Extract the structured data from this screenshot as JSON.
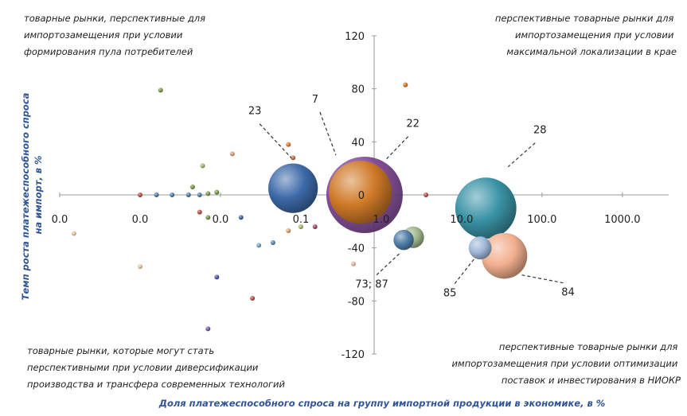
{
  "chart_data": {
    "type": "bubble",
    "x_scale": "log10",
    "xlabel": "Доля платежеспособного спроса на группу импортной продукции в экономике, в %",
    "ylabel": "Темп роста платежеспособного спроса на импорт, в %",
    "xlim": [
      0.0001,
      3000
    ],
    "ylim": [
      -120,
      120
    ],
    "x_ticks": [
      {
        "value": 0.0001,
        "label": "0.0"
      },
      {
        "value": 0.001,
        "label": "0.0"
      },
      {
        "value": 0.01,
        "label": "0.0"
      },
      {
        "value": 0.1,
        "label": "0.1"
      },
      {
        "value": 1,
        "label": "1.0"
      },
      {
        "value": 10,
        "label": "10.0"
      },
      {
        "value": 100,
        "label": "100.0"
      },
      {
        "value": 1000,
        "label": "1000.0"
      }
    ],
    "y_ticks": [
      {
        "value": 120,
        "label": "120"
      },
      {
        "value": 80,
        "label": "80"
      },
      {
        "value": 40,
        "label": "40"
      },
      {
        "value": 0,
        "label": "0"
      },
      {
        "value": -40,
        "label": "-40"
      },
      {
        "value": -80,
        "label": "-80"
      },
      {
        "value": -120,
        "label": "-120"
      }
    ],
    "quadrant_labels": {
      "top_left": [
        "товарные рынки, перспективные для",
        "импортозамещения при условии",
        "формирования пула потребителей"
      ],
      "top_right": [
        "перспективные товарные рынки для",
        "импортозамещения при условии",
        "максимальной локализации в крае"
      ],
      "bottom_left": [
        "товарные рынки, которые могут стать",
        "перспективными при условии диверсификации",
        "производства и трансфера современных технологий"
      ],
      "bottom_right": [
        "перспективные товарные рынки для",
        "импортозамещения при условии оптимизации",
        "поставок и инвестирования в НИОКР"
      ]
    },
    "annotations": [
      "23",
      "7",
      "22",
      "28",
      "73; 87",
      "85",
      "84"
    ],
    "colors": {
      "axis": "#9a9a9a",
      "axis_title": "#2f5597",
      "bubble_23": "#3d6aa8",
      "bubble_7": "#7a3f91",
      "bubble_22": "#d07a28",
      "bubble_28": "#3a93a6",
      "bubble_84": "#f2b08f",
      "bubble_85": "#9fb7d8"
    },
    "bubbles": [
      {
        "label": "7",
        "x": 0.62,
        "y": 0,
        "size": 100,
        "color": "#7a3f91"
      },
      {
        "label": "22",
        "x": 0.55,
        "y": 2,
        "size": 68,
        "color": "#d07a28"
      },
      {
        "label": "23",
        "x": 0.08,
        "y": 5,
        "size": 42,
        "color": "#3d6aa8"
      },
      {
        "label": "28",
        "x": 20,
        "y": -10,
        "size": 64,
        "color": "#3a93a6"
      },
      {
        "label": "84",
        "x": 34,
        "y": -46,
        "size": 36,
        "color": "#f2b08f"
      },
      {
        "label": "85",
        "x": 17,
        "y": -40,
        "size": 9,
        "color": "#9fb7d8"
      },
      {
        "label": "73",
        "x": 2.5,
        "y": -32,
        "size": 8,
        "color": "#9fb58a"
      },
      {
        "label": "87",
        "x": 1.9,
        "y": -34,
        "size": 7,
        "color": "#4f7fa8"
      }
    ],
    "small_points": [
      {
        "x": 2.0,
        "y": 83,
        "color": "#d07a28"
      },
      {
        "x": 0.0018,
        "y": 79,
        "color": "#7a9b4a"
      },
      {
        "x": 0.07,
        "y": 38,
        "color": "#d97b3a"
      },
      {
        "x": 0.08,
        "y": 28,
        "color": "#c4784b"
      },
      {
        "x": 0.014,
        "y": 31,
        "color": "#e0a080"
      },
      {
        "x": 0.006,
        "y": 22,
        "color": "#a0b870"
      },
      {
        "x": 0.0045,
        "y": 6,
        "color": "#7a9b4a"
      },
      {
        "x": 0.001,
        "y": 0,
        "color": "#c0504d"
      },
      {
        "x": 0.0016,
        "y": 0,
        "color": "#4f7fa8"
      },
      {
        "x": 0.0025,
        "y": 0,
        "color": "#4f7fa8"
      },
      {
        "x": 0.004,
        "y": 0,
        "color": "#4f7fa8"
      },
      {
        "x": 0.0055,
        "y": 0,
        "color": "#4f7fa8"
      },
      {
        "x": 0.007,
        "y": 1,
        "color": "#7a9b4a"
      },
      {
        "x": 0.009,
        "y": 2,
        "color": "#7a9b4a"
      },
      {
        "x": 3.6,
        "y": 0,
        "color": "#c0504d"
      },
      {
        "x": 0.0055,
        "y": -13,
        "color": "#c0504d"
      },
      {
        "x": 0.007,
        "y": -17,
        "color": "#7a9b4a"
      },
      {
        "x": 0.018,
        "y": -17,
        "color": "#3d6aa8"
      },
      {
        "x": 0.00015,
        "y": -29,
        "color": "#e6c8a8"
      },
      {
        "x": 0.07,
        "y": -27,
        "color": "#d9a36a"
      },
      {
        "x": 0.1,
        "y": -24,
        "color": "#a0b870"
      },
      {
        "x": 0.15,
        "y": -24,
        "color": "#a04a6a"
      },
      {
        "x": 0.045,
        "y": -36,
        "color": "#5a8ab8"
      },
      {
        "x": 0.03,
        "y": -38,
        "color": "#7aa5c8"
      },
      {
        "x": 2.1,
        "y": -29,
        "color": "#c0504d"
      },
      {
        "x": 0.45,
        "y": -52,
        "color": "#e6b8a0"
      },
      {
        "x": 0.001,
        "y": -54,
        "color": "#e6c8a8"
      },
      {
        "x": 0.009,
        "y": -62,
        "color": "#4f5aa8"
      },
      {
        "x": 0.025,
        "y": -78,
        "color": "#c0504d"
      },
      {
        "x": 0.007,
        "y": -101,
        "color": "#7a5aa8"
      }
    ]
  }
}
